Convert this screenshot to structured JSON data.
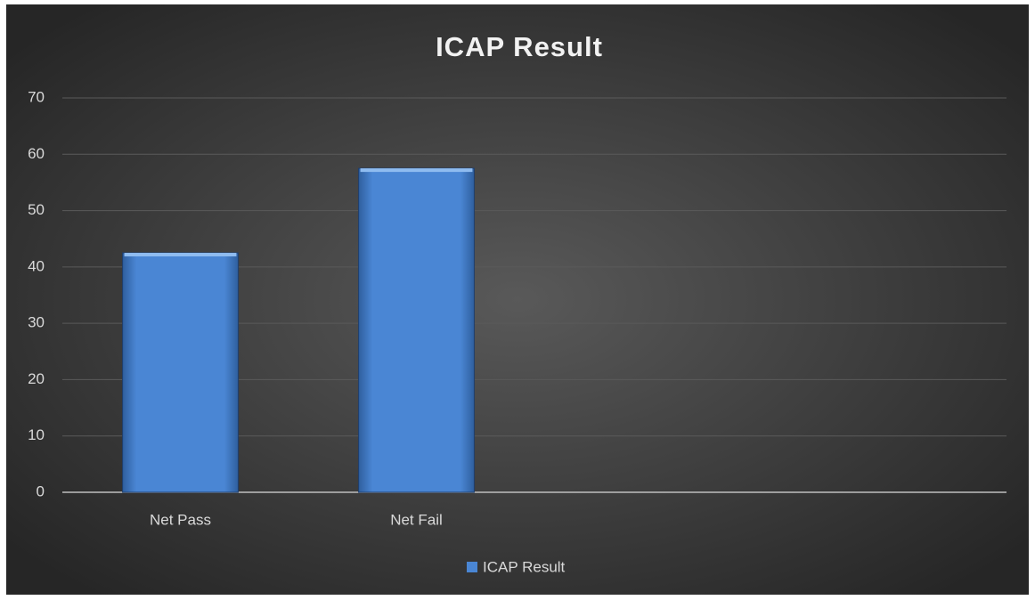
{
  "chart_data": {
    "type": "bar",
    "title": "ICAP Result",
    "categories": [
      "Net Pass",
      "Net Fail",
      null,
      null
    ],
    "series": [
      {
        "name": "ICAP Result",
        "color": "#4a86d4",
        "values": [
          42.5,
          57.5,
          null,
          null
        ]
      }
    ],
    "ylim": [
      0,
      70
    ],
    "yticks": [
      0,
      10,
      20,
      30,
      40,
      50,
      60,
      70
    ],
    "grid": true,
    "legend": "bottom"
  }
}
